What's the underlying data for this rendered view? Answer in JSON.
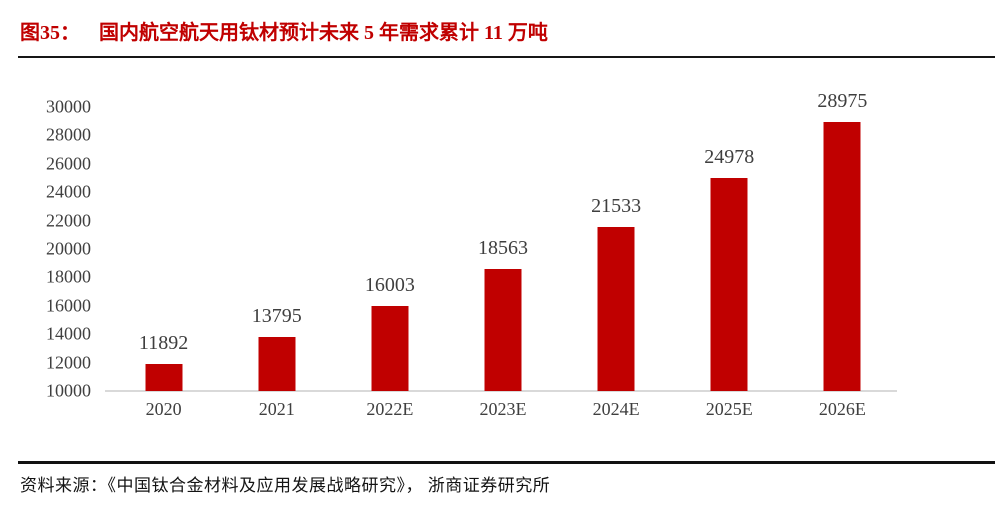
{
  "header": {
    "figure_label": "图35：",
    "title": "国内航空航天用钛材预计未来 5 年需求累计 11 万吨"
  },
  "chart_data": {
    "type": "bar",
    "title": "国内航空航天用钛材预计未来 5 年需求累计 11 万吨",
    "categories": [
      "2020",
      "2021",
      "2022E",
      "2023E",
      "2024E",
      "2025E",
      "2026E"
    ],
    "values": [
      11892,
      13795,
      16003,
      18563,
      21533,
      24978,
      28975
    ],
    "xlabel": "",
    "ylabel": "",
    "ylim": [
      10000,
      30000
    ],
    "ytick_step": 2000,
    "yticks": [
      30000,
      28000,
      26000,
      24000,
      22000,
      20000,
      18000,
      16000,
      14000,
      12000,
      10000
    ],
    "data_labels": true,
    "grid": false,
    "legend": false,
    "bar_color": "#c00000",
    "axis_line_color": "#d9d9d9",
    "tick_label_color": "#3f3f3f"
  },
  "footer": {
    "source_text": "资料来源：《中国钛合金材料及应用发展战略研究》， 浙商证券研究所"
  },
  "colors": {
    "accent": "#c00000",
    "divider": "#161616"
  }
}
